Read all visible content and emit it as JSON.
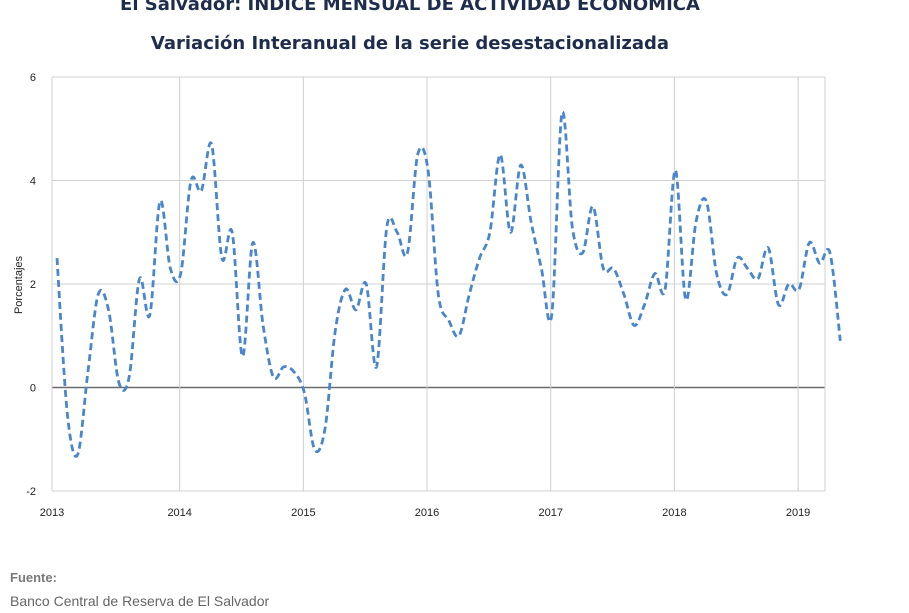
{
  "chart_data": {
    "type": "line",
    "title": "El Salvador: INDICE MENSUAL DE ACTIVIDAD ECONOMICA",
    "subtitle": "Variación Interanual de la serie desestacionalizada",
    "ylabel": "Porcentajes",
    "xlabel": "",
    "ylim": [
      -2,
      6
    ],
    "yticks": [
      -2,
      0,
      2,
      4,
      6
    ],
    "xticks": [
      "2013",
      "2014",
      "2015",
      "2016",
      "2017",
      "2018",
      "2019"
    ],
    "grid": true,
    "line_color": "#4a86cc",
    "line_style": "dashed",
    "series": [
      {
        "start": "2013-01",
        "frequency": "monthly",
        "values": [
          2.5,
          -0.5,
          -1.3,
          0.3,
          1.8,
          1.5,
          0.1,
          0.2,
          2.1,
          1.4,
          3.6,
          2.3,
          2.2,
          4.0,
          3.8,
          4.7,
          2.5,
          3.0,
          0.6,
          2.8,
          1.2,
          0.2,
          0.4,
          0.3,
          -0.1,
          -1.2,
          -0.8,
          1.1,
          1.9,
          1.5,
          2.0,
          0.4,
          3.1,
          3.0,
          2.6,
          4.5,
          4.2,
          1.8,
          1.3,
          1.0,
          1.8,
          2.5,
          3.0,
          4.5,
          3.0,
          4.3,
          3.2,
          2.3,
          1.4,
          5.3,
          3.1,
          2.6,
          3.5,
          2.3,
          2.3,
          1.8,
          1.2,
          1.6,
          2.2,
          1.9,
          4.2,
          1.7,
          3.2,
          3.6,
          2.2,
          1.8,
          2.5,
          2.3,
          2.1,
          2.7,
          1.6,
          2.0,
          1.9,
          2.8,
          2.4,
          2.6,
          0.9
        ]
      }
    ]
  },
  "source": {
    "label": "Fuente:",
    "text": "Banco Central de Reserva de El Salvador"
  }
}
